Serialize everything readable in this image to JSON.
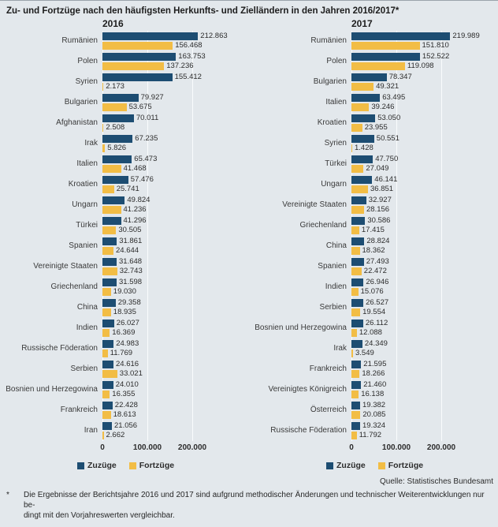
{
  "title": "Zu- und Fortzüge nach den häufigsten Herkunfts- und Zielländern in den Jahren 2016/2017*",
  "colors": {
    "background": "#e3e8ec",
    "zuzuege": "#1d4d72",
    "fortzuege": "#f2bd45",
    "gridline": "#fbfdfe"
  },
  "legend": {
    "zuzuege": "Zuzüge",
    "fortzuege": "Fortzüge"
  },
  "source": "Quelle: Statistisches Bundesamt",
  "footnote": {
    "marker": "*",
    "lines": [
      "Die Ergebnisse der Berichtsjahre 2016 und 2017 sind aufgrund methodischer Änderungen und technischer Weiterentwicklungen nur be-",
      "dingt mit den Vorjahreswerten vergleichbar."
    ]
  },
  "chart_data": [
    {
      "type": "bar",
      "orientation": "horizontal",
      "title": "2016",
      "categories": [
        "Rumänien",
        "Polen",
        "Syrien",
        "Bulgarien",
        "Afghanistan",
        "Irak",
        "Italien",
        "Kroatien",
        "Ungarn",
        "Türkei",
        "Spanien",
        "Vereinigte Staaten",
        "Griechenland",
        "China",
        "Indien",
        "Russische Föderation",
        "Serbien",
        "Bosnien und Herzegowina",
        "Frankreich",
        "Iran"
      ],
      "series": [
        {
          "name": "Zuzüge",
          "color": "#1d4d72",
          "values": [
            212863,
            163753,
            155412,
            79927,
            70011,
            67235,
            65473,
            57476,
            49824,
            41296,
            31861,
            31648,
            31598,
            29358,
            26027,
            24983,
            24616,
            24010,
            22428,
            21056
          ]
        },
        {
          "name": "Fortzüge",
          "color": "#f2bd45",
          "values": [
            156468,
            137236,
            2173,
            53675,
            2508,
            5826,
            41468,
            25741,
            41236,
            30505,
            24644,
            32743,
            19030,
            18935,
            16369,
            11769,
            33021,
            16355,
            18613,
            2662
          ]
        }
      ],
      "x_ticks": [
        0,
        100000,
        200000
      ],
      "x_tick_labels": [
        "0",
        "100.000",
        "200.000"
      ],
      "xlim": [
        0,
        230000
      ],
      "grid": true,
      "legend_position": "bottom"
    },
    {
      "type": "bar",
      "orientation": "horizontal",
      "title": "2017",
      "categories": [
        "Rumänien",
        "Polen",
        "Bulgarien",
        "Italien",
        "Kroatien",
        "Syrien",
        "Türkei",
        "Ungarn",
        "Vereinigte Staaten",
        "Griechenland",
        "China",
        "Spanien",
        "Indien",
        "Serbien",
        "Bosnien und Herzegowina",
        "Irak",
        "Frankreich",
        "Vereinigtes Königreich",
        "Österreich",
        "Russische Föderation"
      ],
      "series": [
        {
          "name": "Zuzüge",
          "color": "#1d4d72",
          "values": [
            219989,
            152522,
            78347,
            63495,
            53050,
            50551,
            47750,
            46141,
            32927,
            30586,
            28824,
            27493,
            26946,
            26527,
            26112,
            24349,
            21595,
            21460,
            19382,
            19324
          ]
        },
        {
          "name": "Fortzüge",
          "color": "#f2bd45",
          "values": [
            151810,
            119098,
            49321,
            39246,
            23955,
            1428,
            27049,
            36851,
            28156,
            17415,
            18362,
            22472,
            15076,
            19554,
            12088,
            3549,
            18266,
            16138,
            20085,
            11792
          ]
        }
      ],
      "x_ticks": [
        0,
        100000,
        200000
      ],
      "x_tick_labels": [
        "0",
        "100.000",
        "200.000"
      ],
      "xlim": [
        0,
        230000
      ],
      "grid": true,
      "legend_position": "bottom"
    }
  ]
}
